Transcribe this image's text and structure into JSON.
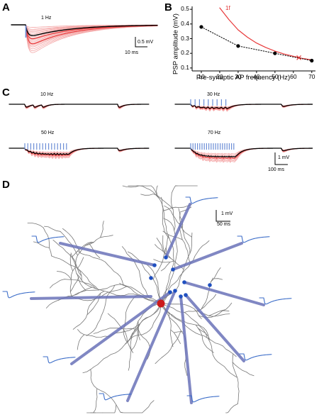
{
  "panels": {
    "a": "A",
    "b": "B",
    "c": "C",
    "d": "D"
  },
  "panel_a": {
    "freq_label": "1 Hz",
    "scale_v": "0.5 mV",
    "scale_t": "10 ms"
  },
  "panel_b": {
    "red_series_label": "1f",
    "marker_x_label": "×"
  },
  "panel_c": {
    "freq_labels": [
      "10 Hz",
      "30 Hz",
      "50 Hz",
      "70 Hz"
    ],
    "scale_v": "1 mV",
    "scale_t": "100 ms"
  },
  "panel_d": {
    "scale_v": "1 mV",
    "scale_t": "50 ms"
  },
  "colors": {
    "trace_red": "#e8393a",
    "trace_light": "#f4a6a6",
    "mean_trace": "#000000",
    "stim_blue": "#6c8ed6",
    "synapse_blue": "#6a72b8",
    "node_blue": "#2050c0",
    "soma_red": "#cc1b1b",
    "dendrite_gray": "#777777"
  },
  "chart_data": [
    {
      "panel": "B",
      "type": "scatter",
      "title": "",
      "xlabel": "Pre-synaptic AP frequency (Hz)",
      "ylabel": "PSP amplitude (mV)",
      "xlim": [
        5,
        72
      ],
      "ylim": [
        0.08,
        0.52
      ],
      "xticks": [
        10,
        20,
        30,
        40,
        50,
        60,
        70
      ],
      "yticks": [
        0.1,
        0.2,
        0.3,
        0.4,
        0.5
      ],
      "grid": false,
      "series": [
        {
          "name": "",
          "style": "black dotted with filled circles",
          "x": [
            10,
            30,
            50,
            70
          ],
          "y": [
            0.38,
            0.25,
            0.2,
            0.15
          ]
        },
        {
          "name": "1f",
          "style": "red curve",
          "x": [
            20,
            25,
            30,
            35,
            40,
            45,
            50,
            55,
            60,
            65,
            70
          ],
          "y": [
            0.51,
            0.43,
            0.36,
            0.31,
            0.27,
            0.24,
            0.215,
            0.195,
            0.18,
            0.165,
            0.155
          ]
        }
      ],
      "markers": [
        {
          "shape": "x",
          "x": 63,
          "y": 0.17,
          "color": "#e03030"
        }
      ]
    }
  ]
}
